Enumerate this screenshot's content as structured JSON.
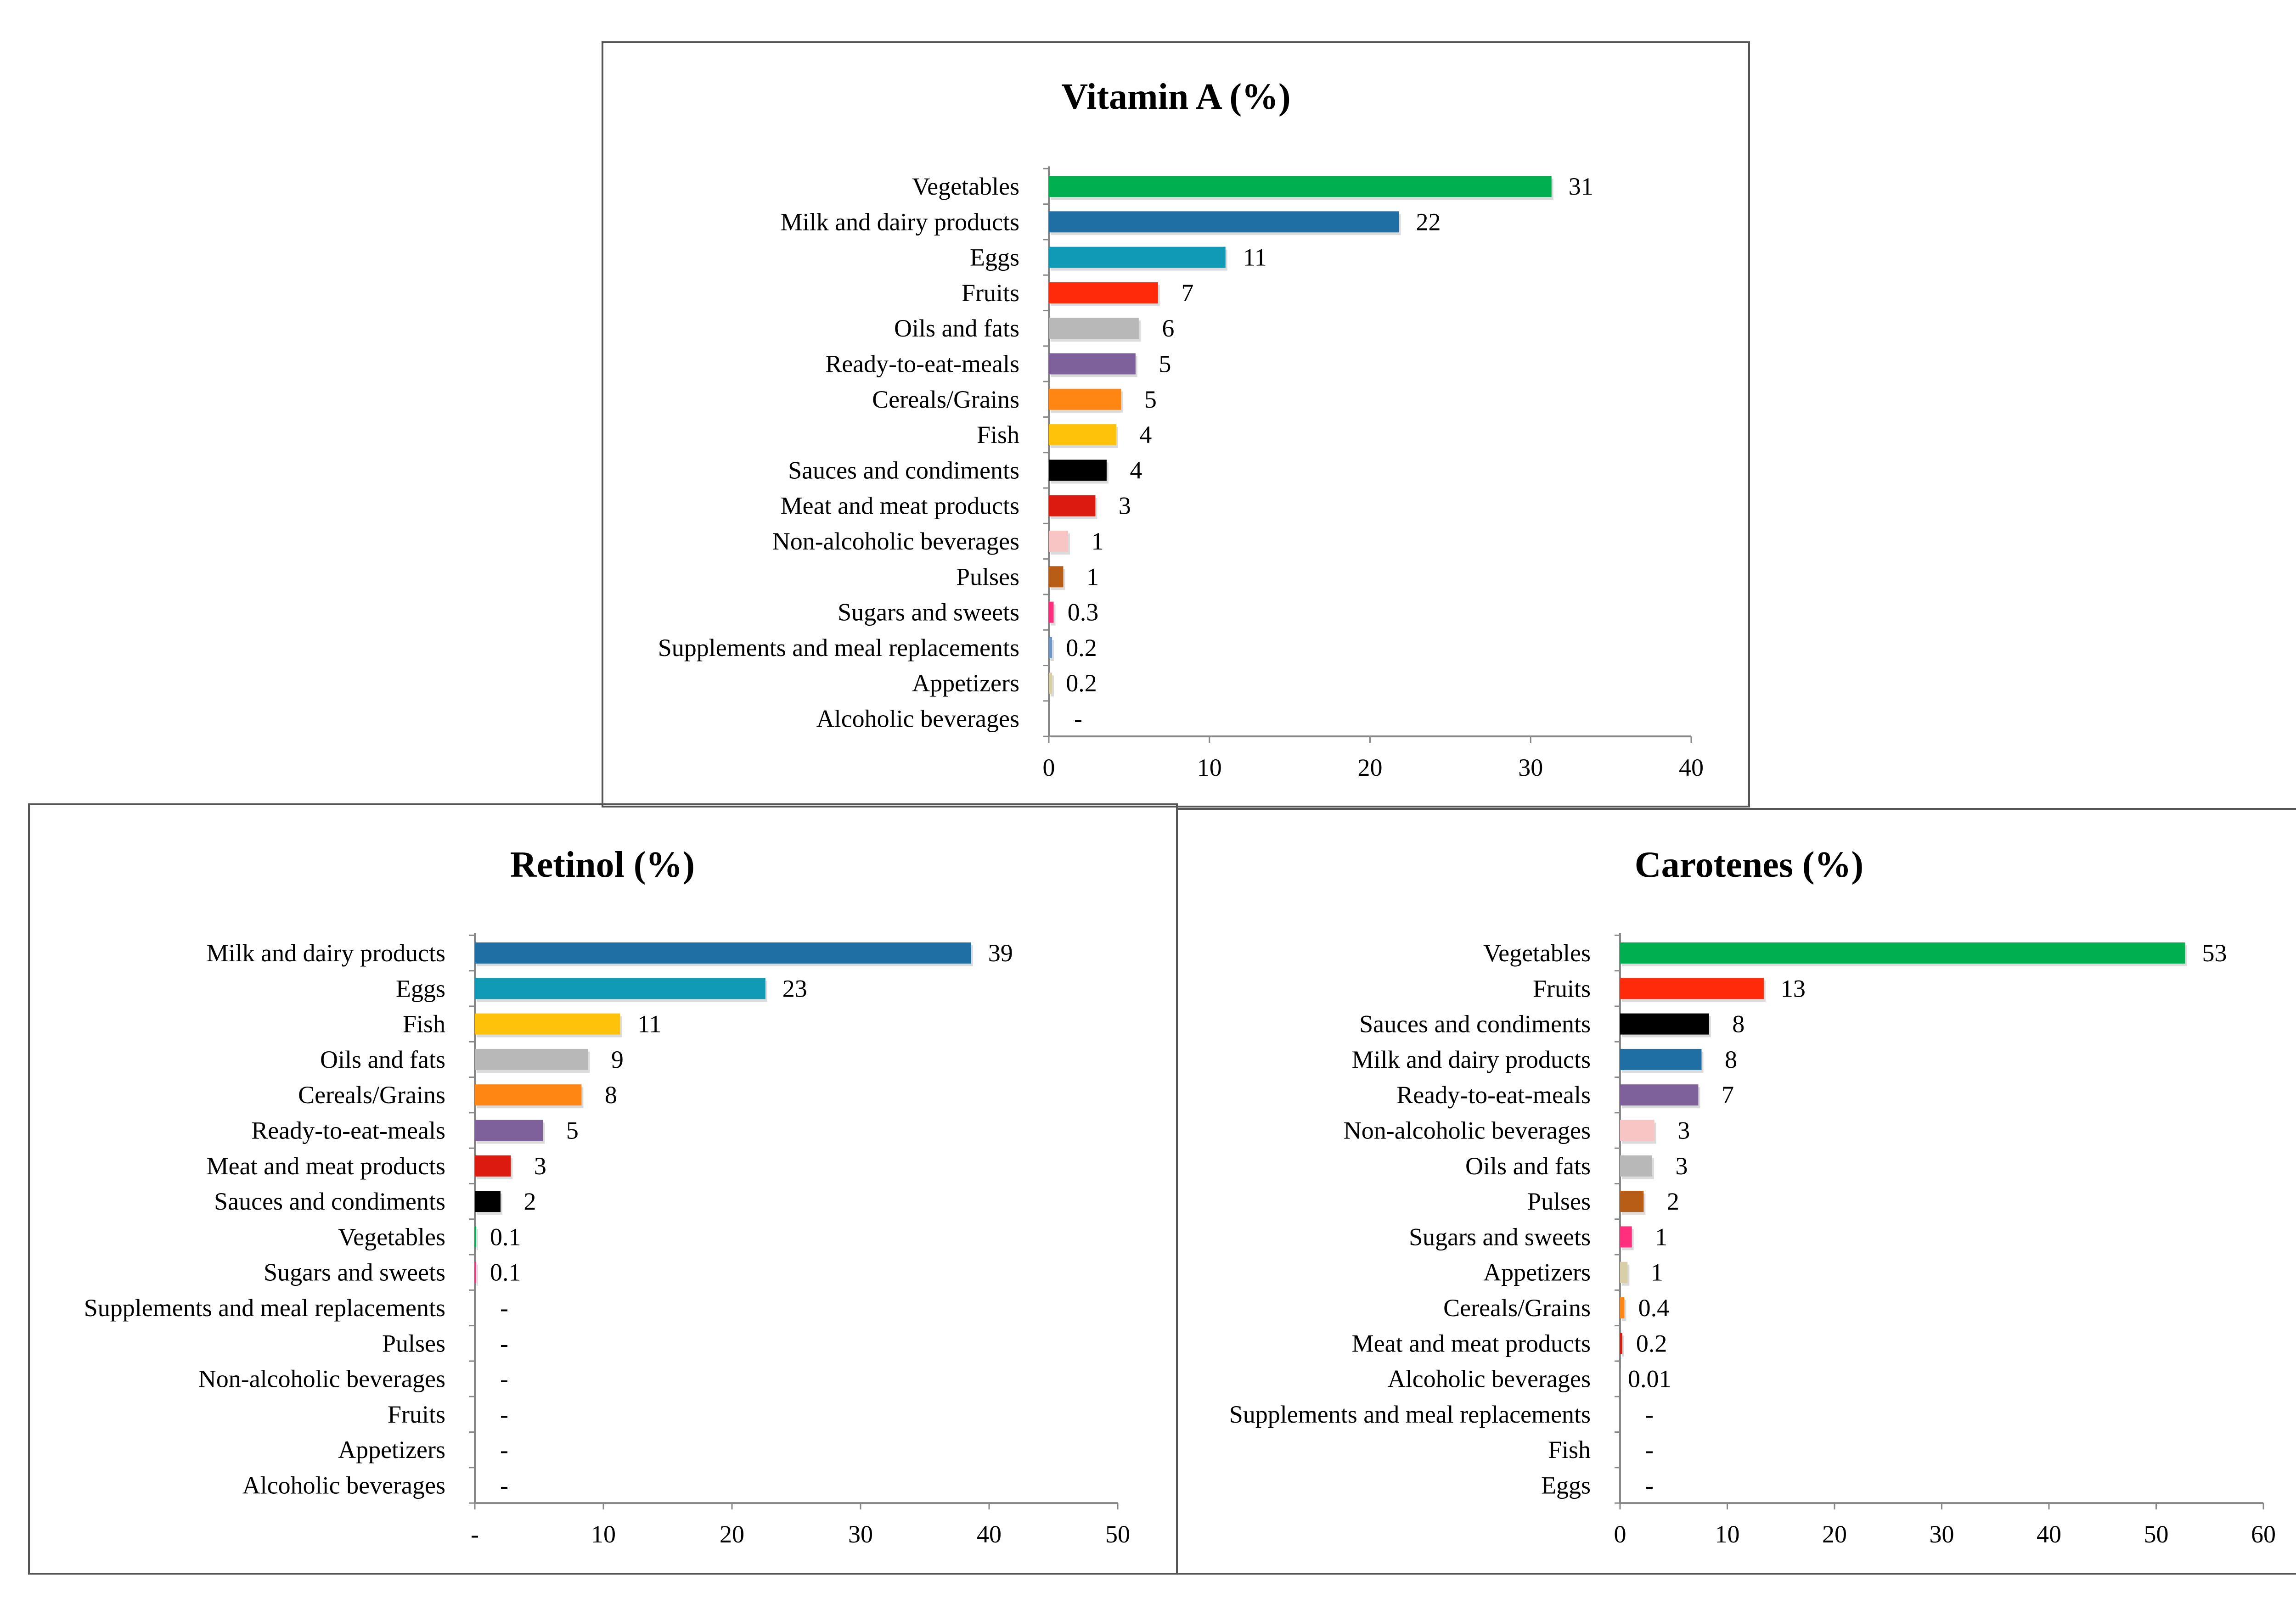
{
  "chart_data": [
    {
      "type": "bar",
      "orientation": "horizontal",
      "title": "Vitamin A (%)",
      "xlim": [
        0,
        40
      ],
      "xticks": [
        "0",
        "10",
        "20",
        "30",
        "40"
      ],
      "grid": false,
      "categories": [
        "Vegetables",
        "Milk and dairy products",
        "Eggs",
        "Fruits",
        "Oils and fats",
        "Ready-to-eat-meals",
        "Cereals/Grains",
        "Fish",
        "Sauces and condiments",
        "Meat and meat products",
        "Non-alcoholic beverages",
        "Pulses",
        "Sugars and sweets",
        "Supplements and meal replacements",
        "Appetizers",
        "Alcoholic beverages"
      ],
      "values": [
        31.3,
        21.8,
        11,
        6.8,
        5.6,
        5.4,
        4.5,
        4.2,
        3.6,
        2.9,
        1.2,
        0.9,
        0.3,
        0.2,
        0.2,
        0
      ],
      "labels": [
        "31",
        "22",
        "11",
        "7",
        "6",
        "5",
        "5",
        "4",
        "4",
        "3",
        "1",
        "1",
        "0.3",
        "0.2",
        "0.2",
        "-"
      ],
      "colors": [
        "#00b050",
        "#1f6fa5",
        "#109ab5",
        "#ff2a0a",
        "#b8b8b8",
        "#7e619a",
        "#ff8612",
        "#ffc20a",
        "#000000",
        "#dd1a10",
        "#f9c4c4",
        "#b85d16",
        "#ff2f7d",
        "#6f95c4",
        "#d9cfa6",
        "#cccccc"
      ]
    },
    {
      "type": "bar",
      "orientation": "horizontal",
      "title": "Retinol (%)",
      "xlim": [
        0,
        50
      ],
      "xticks": [
        "-",
        "10",
        "20",
        "30",
        "40",
        "50"
      ],
      "grid": false,
      "categories": [
        "Milk and dairy products",
        "Eggs",
        "Fish",
        "Oils and fats",
        "Cereals/Grains",
        "Ready-to-eat-meals",
        "Meat and meat products",
        "Sauces and condiments",
        "Vegetables",
        "Sugars and sweets",
        "Supplements and meal replacements",
        "Pulses",
        "Non-alcoholic beverages",
        "Fruits",
        "Appetizers",
        "Alcoholic beverages"
      ],
      "values": [
        38.6,
        22.6,
        11.3,
        8.8,
        8.3,
        5.3,
        2.8,
        2,
        0.1,
        0.1,
        0,
        0,
        0,
        0,
        0,
        0
      ],
      "labels": [
        "39",
        "23",
        "11",
        "9",
        "8",
        "5",
        "3",
        "2",
        "0.1",
        "0.1",
        "-",
        "-",
        "-",
        "-",
        "-",
        "-"
      ],
      "colors": [
        "#1f6fa5",
        "#109ab5",
        "#ffc20a",
        "#b8b8b8",
        "#ff8612",
        "#7e619a",
        "#dd1a10",
        "#000000",
        "#00b050",
        "#ff2f7d",
        "#6f95c4",
        "#b85d16",
        "#f9c4c4",
        "#ff2a0a",
        "#d9cfa6",
        "#cccccc"
      ]
    },
    {
      "type": "bar",
      "orientation": "horizontal",
      "title": "Carotenes (%)",
      "xlim": [
        0,
        60
      ],
      "xticks": [
        "0",
        "10",
        "20",
        "30",
        "40",
        "50",
        "60"
      ],
      "grid": false,
      "categories": [
        "Vegetables",
        "Fruits",
        "Sauces and condiments",
        "Milk and dairy products",
        "Ready-to-eat-meals",
        "Non-alcoholic beverages",
        "Oils and fats",
        "Pulses",
        "Sugars and sweets",
        "Appetizers",
        "Cereals/Grains",
        "Meat and meat products",
        "Alcoholic beverages",
        "Supplements and meal replacements",
        "Fish",
        "Eggs"
      ],
      "values": [
        52.7,
        13.4,
        8.3,
        7.6,
        7.3,
        3.2,
        3,
        2.2,
        1.1,
        0.7,
        0.4,
        0.2,
        0.01,
        0,
        0,
        0
      ],
      "labels": [
        "53",
        "13",
        "8",
        "8",
        "7",
        "3",
        "3",
        "2",
        "1",
        "1",
        "0.4",
        "0.2",
        "0.01",
        "-",
        "-",
        "-"
      ],
      "colors": [
        "#00b050",
        "#ff2a0a",
        "#000000",
        "#1f6fa5",
        "#7e619a",
        "#f9c4c4",
        "#b8b8b8",
        "#b85d16",
        "#ff2f7d",
        "#d9cfa6",
        "#ff8612",
        "#dd1a10",
        "#cccccc",
        "#6f95c4",
        "#ffc20a",
        "#109ab5"
      ]
    }
  ]
}
